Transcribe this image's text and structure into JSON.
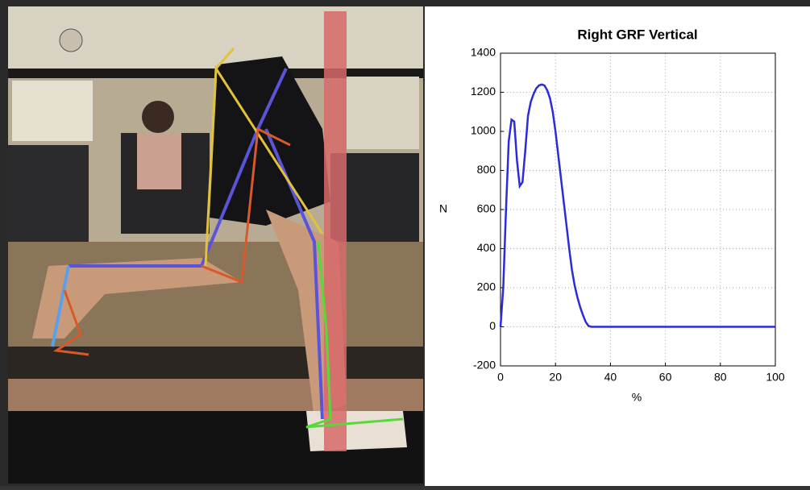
{
  "chart_data": {
    "type": "line",
    "title": "Right GRF Vertical",
    "xlabel": "%",
    "ylabel": "N",
    "x": [
      0,
      1,
      2,
      3,
      4,
      5,
      6,
      7,
      8,
      9,
      10,
      11,
      12,
      13,
      14,
      15,
      16,
      17,
      18,
      19,
      20,
      21,
      22,
      23,
      24,
      25,
      26,
      27,
      28,
      29,
      30,
      31,
      32,
      33,
      40,
      50,
      60,
      70,
      80,
      90,
      100
    ],
    "series": [
      {
        "name": "Right GRF Vertical",
        "color": "#2b2bd9",
        "values": [
          0,
          200,
          600,
          950,
          1060,
          1050,
          850,
          720,
          740,
          900,
          1080,
          1150,
          1190,
          1220,
          1235,
          1240,
          1235,
          1210,
          1170,
          1100,
          1000,
          880,
          760,
          640,
          520,
          400,
          290,
          210,
          150,
          100,
          60,
          25,
          5,
          0,
          0,
          0,
          0,
          0,
          0,
          0,
          0
        ]
      }
    ],
    "xlim": [
      0,
      100
    ],
    "xticks": [
      0,
      20,
      40,
      60,
      80,
      100
    ],
    "ylim": [
      -200,
      1400
    ],
    "yticks": [
      -200,
      0,
      200,
      400,
      600,
      800,
      1000,
      1200,
      1400
    ],
    "grid": true
  }
}
